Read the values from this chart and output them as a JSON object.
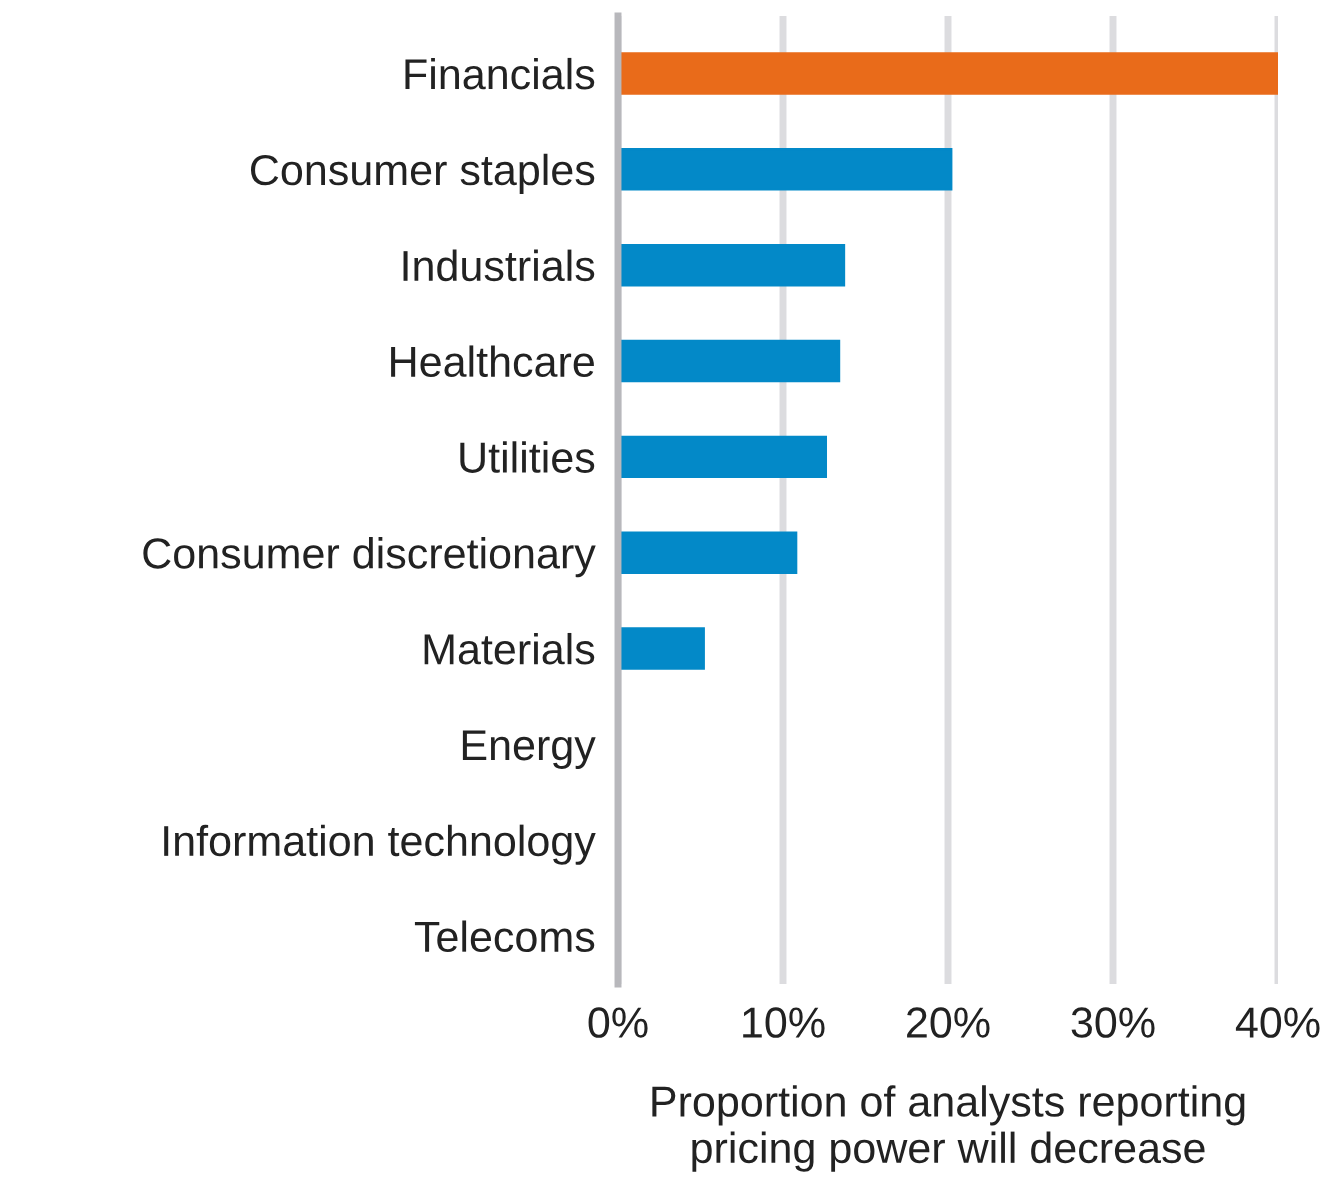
{
  "chart_data": {
    "type": "bar",
    "orientation": "horizontal",
    "categories": [
      "Financials",
      "Consumer staples",
      "Industrials",
      "Healthcare",
      "Utilities",
      "Consumer discretionary",
      "Materials",
      "Energy",
      "Information technology",
      "Telecoms"
    ],
    "values": [
      40,
      20.2,
      13.7,
      13.4,
      12.6,
      10.8,
      5.2,
      0,
      0,
      0
    ],
    "colors": [
      "#e96b1a",
      "#0389c8",
      "#0389c8",
      "#0389c8",
      "#0389c8",
      "#0389c8",
      "#0389c8",
      "#0389c8",
      "#0389c8",
      "#0389c8"
    ],
    "xlabel": "Proportion of analysts reporting\npricing power will decrease",
    "xlim": [
      0,
      40
    ],
    "xticks": [
      {
        "value": 0,
        "label": "0%"
      },
      {
        "value": 10,
        "label": "10%"
      },
      {
        "value": 20,
        "label": "20%"
      },
      {
        "value": 30,
        "label": "30%"
      },
      {
        "value": 40,
        "label": "40%"
      }
    ],
    "grid": "x"
  }
}
